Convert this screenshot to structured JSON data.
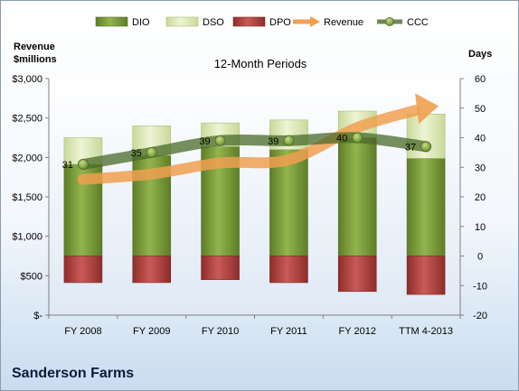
{
  "chart_data": {
    "type": "bar",
    "title": "12-Month Periods",
    "y_left_label_line1": "Revenue",
    "y_left_label_line2": "$millions",
    "y_right_label": "Days",
    "categories": [
      "FY 2008",
      "FY 2009",
      "FY 2010",
      "FY 2011",
      "FY 2012",
      "TTM 4-2013"
    ],
    "y_left_ticks": [
      "$-",
      "$500",
      "$1,000",
      "$1,500",
      "$2,000",
      "$2,500",
      "$3,000"
    ],
    "y_left_range": [
      0,
      3000
    ],
    "y_right_ticks": [
      "-20",
      "-10",
      "0",
      "10",
      "20",
      "30",
      "40",
      "50",
      "60"
    ],
    "y_right_range": [
      -20,
      60
    ],
    "grid": false,
    "legend_position": "top",
    "series": [
      {
        "name": "DIO",
        "type": "stacked-bar",
        "axis": "right",
        "color": "#7a9a3a",
        "values": [
          31,
          34,
          37,
          36,
          40,
          33
        ]
      },
      {
        "name": "DSO",
        "type": "stacked-bar",
        "axis": "right",
        "color": "#dfeab8",
        "values": [
          9,
          10,
          8,
          10,
          9,
          15
        ]
      },
      {
        "name": "DPO",
        "type": "stacked-bar",
        "axis": "right",
        "color": "#b84a48",
        "values": [
          -9,
          -9,
          -8,
          -9,
          -12,
          -13
        ]
      },
      {
        "name": "Revenue",
        "type": "line",
        "axis": "left",
        "color": "#f0a050",
        "values": [
          1720,
          1790,
          1930,
          1970,
          2380,
          2630
        ]
      },
      {
        "name": "CCC",
        "type": "line",
        "axis": "right",
        "color": "#4a6a2a",
        "values": [
          31,
          35,
          39,
          39,
          40,
          37
        ]
      }
    ],
    "data_labels": [
      "31",
      "35",
      "39",
      "39",
      "40",
      "37"
    ]
  },
  "footer": {
    "company": "Sanderson Farms"
  }
}
